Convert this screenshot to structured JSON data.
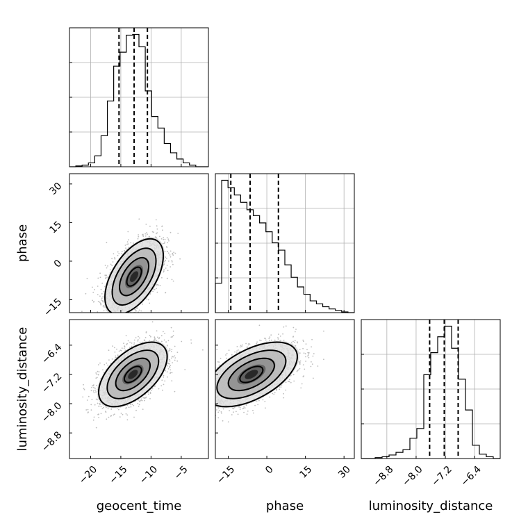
{
  "chart_data": {
    "type": "corner",
    "parameters": [
      "geocent_time",
      "phase",
      "luminosity_distance"
    ],
    "ranges": {
      "geocent_time": [
        -23.5,
        -0.5
      ],
      "phase": [
        -20,
        34
      ],
      "luminosity_distance": [
        -9.5,
        -5.7
      ]
    },
    "ticks": {
      "geocent_time": [
        -20,
        -15,
        -10,
        -5
      ],
      "phase": [
        -15,
        0,
        15,
        30
      ],
      "luminosity_distance": [
        -8.8,
        -8.0,
        -7.2,
        -6.4
      ]
    },
    "tick_labels": {
      "geocent_time": [
        "−20",
        "−15",
        "−10",
        "−5"
      ],
      "phase": [
        "−15",
        "0",
        "15",
        "30"
      ],
      "luminosity_distance": [
        "−8.8",
        "−8.0",
        "−7.2",
        "−6.4"
      ]
    },
    "quantiles": {
      "geocent_time": [
        -15.3,
        -12.8,
        -10.6
      ],
      "phase": [
        -14.0,
        -6.5,
        4.5
      ],
      "luminosity_distance": [
        -7.63,
        -7.23,
        -6.85
      ]
    },
    "histograms": {
      "geocent_time": {
        "edges_range": [
          -23.5,
          -0.5
        ],
        "counts": [
          0,
          1,
          2,
          5,
          14,
          40,
          85,
          130,
          148,
          170,
          171,
          155,
          98,
          65,
          50,
          30,
          18,
          10,
          5,
          2,
          0,
          0
        ]
      },
      "phase": {
        "edges_range": [
          -20,
          34
        ],
        "counts": [
          40,
          180,
          170,
          160,
          150,
          140,
          132,
          122,
          110,
          95,
          85,
          65,
          48,
          35,
          25,
          16,
          12,
          8,
          5,
          3,
          1,
          0
        ]
      },
      "luminosity_distance": {
        "edges_range": [
          -9.5,
          -5.7
        ],
        "counts": [
          0,
          0,
          1,
          2,
          4,
          7,
          10,
          23,
          34,
          95,
          120,
          138,
          150,
          125,
          90,
          55,
          15,
          5,
          2,
          0
        ]
      }
    },
    "joint_2d": [
      {
        "x": "geocent_time",
        "y": "phase",
        "mean": [
          -12.8,
          -6.0
        ],
        "sd": [
          2.3,
          7.0
        ],
        "corr": 0.55
      },
      {
        "x": "geocent_time",
        "y": "luminosity_distance",
        "mean": [
          -13.0,
          -7.2
        ],
        "sd": [
          2.7,
          0.42
        ],
        "corr": 0.55
      },
      {
        "x": "phase",
        "y": "luminosity_distance",
        "mean": [
          -6.0,
          -7.2
        ],
        "sd": [
          8.5,
          0.42
        ],
        "corr": 0.55
      }
    ],
    "contour_levels_sigma": [
      0.5,
      1.0,
      1.5,
      2.0
    ],
    "grid": true
  }
}
